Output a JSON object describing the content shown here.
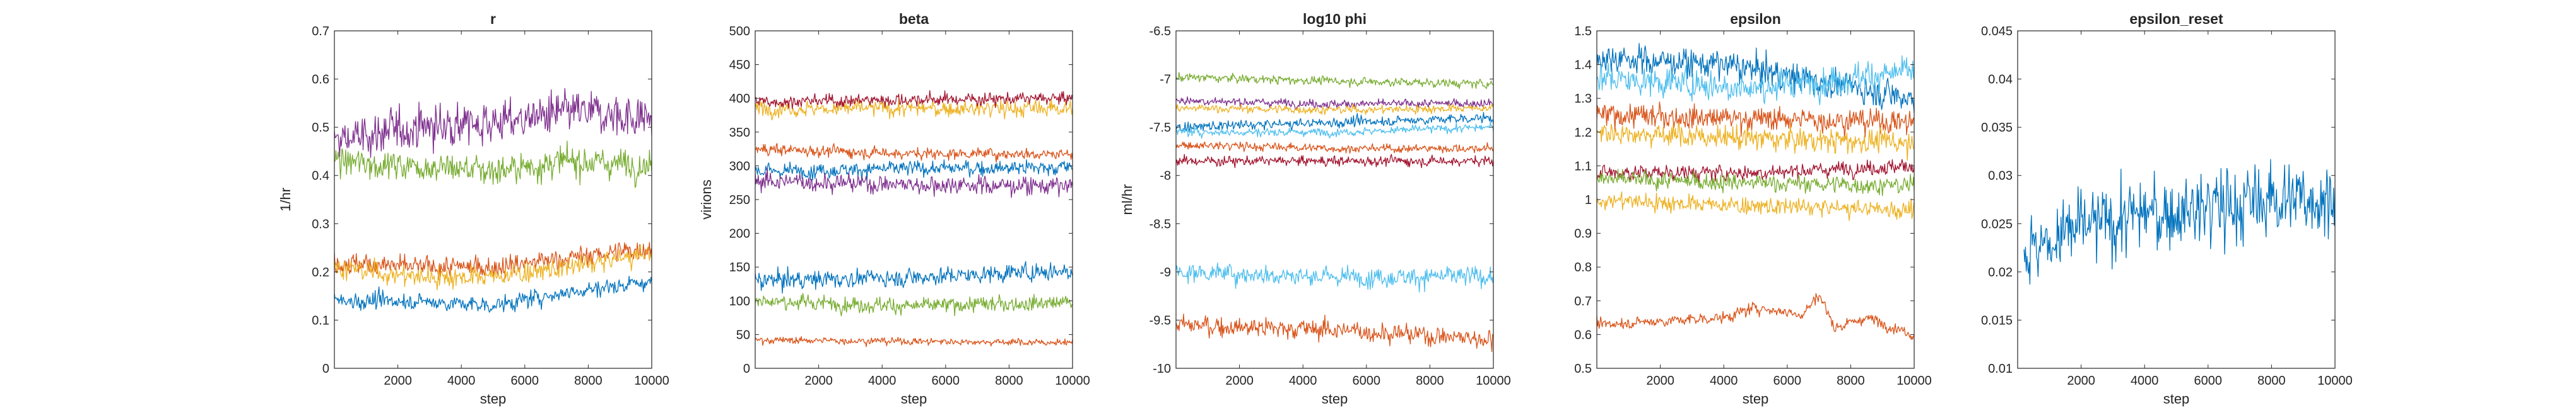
{
  "figure": {
    "background": "#ffffff",
    "axis_color": "#262626",
    "series_colors": [
      "#0072BD",
      "#D95319",
      "#EDB120",
      "#7E2F8E",
      "#77AC30",
      "#4DBEEE",
      "#A2142F"
    ]
  },
  "chart_data": [
    {
      "type": "line",
      "title": "r",
      "xlabel": "step",
      "ylabel": "1/hr",
      "xlim": [
        0,
        10000
      ],
      "ylim": [
        0,
        0.7
      ],
      "xticks": [
        "2000",
        "4000",
        "6000",
        "8000",
        "10000"
      ],
      "yticks": [
        "0",
        "0.1",
        "0.2",
        "0.3",
        "0.4",
        "0.5",
        "0.6",
        "0.7"
      ],
      "grid": false,
      "series": [
        {
          "color": "#7E2F8E",
          "mean": 0.5,
          "noise": 0.05,
          "drift": [
            [
              0,
              0.47
            ],
            [
              2500,
              0.5
            ],
            [
              5000,
              0.51
            ],
            [
              7500,
              0.53
            ],
            [
              10000,
              0.52
            ]
          ]
        },
        {
          "color": "#77AC30",
          "mean": 0.42,
          "noise": 0.035,
          "drift": [
            [
              0,
              0.43
            ],
            [
              2500,
              0.42
            ],
            [
              5000,
              0.41
            ],
            [
              7500,
              0.43
            ],
            [
              10000,
              0.42
            ]
          ]
        },
        {
          "color": "#D95319",
          "mean": 0.22,
          "noise": 0.025,
          "drift": [
            [
              0,
              0.22
            ],
            [
              2500,
              0.21
            ],
            [
              5000,
              0.21
            ],
            [
              7500,
              0.23
            ],
            [
              10000,
              0.25
            ]
          ]
        },
        {
          "color": "#EDB120",
          "mean": 0.2,
          "noise": 0.025,
          "drift": [
            [
              0,
              0.21
            ],
            [
              2500,
              0.19
            ],
            [
              5000,
              0.19
            ],
            [
              7500,
              0.21
            ],
            [
              10000,
              0.24
            ]
          ]
        },
        {
          "color": "#0072BD",
          "mean": 0.15,
          "noise": 0.02,
          "drift": [
            [
              0,
              0.14
            ],
            [
              2500,
              0.14
            ],
            [
              5000,
              0.13
            ],
            [
              7500,
              0.16
            ],
            [
              10000,
              0.18
            ]
          ]
        }
      ]
    },
    {
      "type": "line",
      "title": "beta",
      "xlabel": "step",
      "ylabel": "virions",
      "xlim": [
        0,
        10000
      ],
      "ylim": [
        0,
        500
      ],
      "xticks": [
        "2000",
        "4000",
        "6000",
        "8000",
        "10000"
      ],
      "yticks": [
        "0",
        "50",
        "100",
        "150",
        "200",
        "250",
        "300",
        "350",
        "400",
        "450",
        "500"
      ],
      "grid": false,
      "series": [
        {
          "color": "#EDB120",
          "mean": 385,
          "noise": 14,
          "drift": [
            [
              0,
              385
            ],
            [
              5000,
              385
            ],
            [
              10000,
              385
            ]
          ]
        },
        {
          "color": "#A2142F",
          "mean": 398,
          "noise": 11,
          "drift": [
            [
              0,
              395
            ],
            [
              5000,
              398
            ],
            [
              10000,
              400
            ]
          ]
        },
        {
          "color": "#D95319",
          "mean": 320,
          "noise": 10,
          "drift": [
            [
              0,
              325
            ],
            [
              5000,
              318
            ],
            [
              10000,
              318
            ]
          ]
        },
        {
          "color": "#0072BD",
          "mean": 295,
          "noise": 13,
          "drift": [
            [
              0,
              292
            ],
            [
              5000,
              296
            ],
            [
              10000,
              298
            ]
          ]
        },
        {
          "color": "#7E2F8E",
          "mean": 275,
          "noise": 16,
          "drift": [
            [
              0,
              278
            ],
            [
              5000,
              272
            ],
            [
              10000,
              270
            ]
          ]
        },
        {
          "color": "#0072BD",
          "mean": 135,
          "noise": 15,
          "drift": [
            [
              0,
              130
            ],
            [
              5000,
              135
            ],
            [
              10000,
              145
            ]
          ]
        },
        {
          "color": "#77AC30",
          "mean": 95,
          "noise": 13,
          "drift": [
            [
              0,
              100
            ],
            [
              5000,
              92
            ],
            [
              10000,
              98
            ]
          ]
        },
        {
          "color": "#D95319",
          "mean": 40,
          "noise": 6,
          "drift": [
            [
              0,
              42
            ],
            [
              5000,
              40
            ],
            [
              10000,
              38
            ]
          ]
        }
      ]
    },
    {
      "type": "line",
      "title": "log10 phi",
      "xlabel": "step",
      "ylabel": "ml/hr",
      "xlim": [
        0,
        10000
      ],
      "ylim": [
        -10,
        -6.5
      ],
      "xticks": [
        "2000",
        "4000",
        "6000",
        "8000",
        "10000"
      ],
      "yticks": [
        "-10",
        "-9.5",
        "-9",
        "-8.5",
        "-8",
        "-7.5",
        "-7",
        "-6.5"
      ],
      "grid": false,
      "series": [
        {
          "color": "#77AC30",
          "mean": -7.0,
          "noise": 0.05,
          "drift": [
            [
              0,
              -6.98
            ],
            [
              5000,
              -7.02
            ],
            [
              10000,
              -7.05
            ]
          ]
        },
        {
          "color": "#7E2F8E",
          "mean": -7.25,
          "noise": 0.05,
          "drift": [
            [
              0,
              -7.22
            ],
            [
              5000,
              -7.26
            ],
            [
              10000,
              -7.25
            ]
          ]
        },
        {
          "color": "#EDB120",
          "mean": -7.3,
          "noise": 0.05,
          "drift": [
            [
              0,
              -7.3
            ],
            [
              5000,
              -7.32
            ],
            [
              10000,
              -7.3
            ]
          ]
        },
        {
          "color": "#0072BD",
          "mean": -7.45,
          "noise": 0.06,
          "drift": [
            [
              0,
              -7.5
            ],
            [
              5000,
              -7.45
            ],
            [
              10000,
              -7.4
            ]
          ]
        },
        {
          "color": "#4DBEEE",
          "mean": -7.55,
          "noise": 0.05,
          "drift": [
            [
              0,
              -7.55
            ],
            [
              5000,
              -7.55
            ],
            [
              10000,
              -7.5
            ]
          ]
        },
        {
          "color": "#D95319",
          "mean": -7.7,
          "noise": 0.05,
          "drift": [
            [
              0,
              -7.68
            ],
            [
              5000,
              -7.72
            ],
            [
              10000,
              -7.72
            ]
          ]
        },
        {
          "color": "#A2142F",
          "mean": -7.85,
          "noise": 0.06,
          "drift": [
            [
              0,
              -7.85
            ],
            [
              5000,
              -7.85
            ],
            [
              10000,
              -7.85
            ]
          ]
        },
        {
          "color": "#4DBEEE",
          "mean": -9.05,
          "noise": 0.12,
          "drift": [
            [
              0,
              -9.0
            ],
            [
              5000,
              -9.05
            ],
            [
              10000,
              -9.05
            ]
          ]
        },
        {
          "color": "#D95319",
          "mean": -9.6,
          "noise": 0.12,
          "drift": [
            [
              0,
              -9.55
            ],
            [
              5000,
              -9.6
            ],
            [
              10000,
              -9.7
            ]
          ]
        }
      ]
    },
    {
      "type": "line",
      "title": "epsilon",
      "xlabel": "step",
      "ylabel": "",
      "xlim": [
        0,
        10000
      ],
      "ylim": [
        0.5,
        1.5
      ],
      "xticks": [
        "2000",
        "4000",
        "6000",
        "8000",
        "10000"
      ],
      "yticks": [
        "0.5",
        "0.6",
        "0.7",
        "0.8",
        "0.9",
        "1",
        "1.1",
        "1.2",
        "1.3",
        "1.4",
        "1.5"
      ],
      "grid": false,
      "series": [
        {
          "color": "#0072BD",
          "mean": 1.4,
          "noise": 0.05,
          "drift": [
            [
              0,
              1.42
            ],
            [
              4000,
              1.4
            ],
            [
              7000,
              1.35
            ],
            [
              10000,
              1.3
            ]
          ]
        },
        {
          "color": "#4DBEEE",
          "mean": 1.35,
          "noise": 0.05,
          "drift": [
            [
              0,
              1.36
            ],
            [
              5000,
              1.33
            ],
            [
              10000,
              1.38
            ]
          ]
        },
        {
          "color": "#D95319",
          "mean": 1.25,
          "noise": 0.04,
          "drift": [
            [
              0,
              1.25
            ],
            [
              5000,
              1.24
            ],
            [
              10000,
              1.23
            ]
          ]
        },
        {
          "color": "#EDB120",
          "mean": 1.2,
          "noise": 0.04,
          "drift": [
            [
              0,
              1.2
            ],
            [
              5000,
              1.18
            ],
            [
              10000,
              1.17
            ]
          ]
        },
        {
          "color": "#A2142F",
          "mean": 1.08,
          "noise": 0.025,
          "drift": [
            [
              0,
              1.08
            ],
            [
              5000,
              1.08
            ],
            [
              10000,
              1.1
            ]
          ]
        },
        {
          "color": "#77AC30",
          "mean": 1.05,
          "noise": 0.03,
          "drift": [
            [
              0,
              1.06
            ],
            [
              5000,
              1.05
            ],
            [
              10000,
              1.04
            ]
          ]
        },
        {
          "color": "#EDB120",
          "mean": 0.99,
          "noise": 0.03,
          "drift": [
            [
              0,
              1.0
            ],
            [
              5000,
              0.98
            ],
            [
              10000,
              0.97
            ]
          ]
        },
        {
          "color": "#D95319",
          "mean": 0.64,
          "noise": 0.02,
          "drift": [
            [
              0,
              0.63
            ],
            [
              4000,
              0.65
            ],
            [
              5000,
              0.68
            ],
            [
              6500,
              0.66
            ],
            [
              7000,
              0.72
            ],
            [
              7500,
              0.62
            ],
            [
              8500,
              0.65
            ],
            [
              10000,
              0.6
            ]
          ]
        }
      ]
    },
    {
      "type": "line",
      "title": "epsilon_reset",
      "xlabel": "step",
      "ylabel": "",
      "xlim": [
        0,
        10000
      ],
      "ylim": [
        0.01,
        0.045
      ],
      "xticks": [
        "2000",
        "4000",
        "6000",
        "8000",
        "10000"
      ],
      "yticks": [
        "0.01",
        "0.015",
        "0.02",
        "0.025",
        "0.03",
        "0.035",
        "0.04",
        "0.045"
      ],
      "grid": false,
      "series": [
        {
          "color": "#0072BD",
          "mean": 0.026,
          "noise": 0.0045,
          "start": 200,
          "drift": [
            [
              200,
              0.022
            ],
            [
              800,
              0.023
            ],
            [
              1500,
              0.024
            ],
            [
              4000,
              0.026
            ],
            [
              7000,
              0.027
            ],
            [
              10000,
              0.028
            ]
          ]
        }
      ]
    }
  ]
}
